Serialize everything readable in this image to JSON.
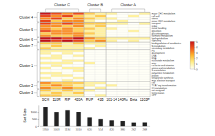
{
  "chart_data": [
    {
      "type": "heatmap",
      "column_clusters": [
        {
          "name": "Cluster C",
          "size": 4
        },
        {
          "name": "Cluster B",
          "size": 2
        },
        {
          "name": "Cluster A",
          "size": 4
        }
      ],
      "row_clusters": [
        {
          "name": "Cluster 4",
          "size": 4
        },
        {
          "name": "Cluster 5",
          "size": 6
        },
        {
          "name": "Cluster 6",
          "size": 2
        },
        {
          "name": "Cluster 7",
          "size": 3
        },
        {
          "name": "Cluster 1",
          "size": 13
        },
        {
          "name": "Cluster 2",
          "size": 3
        },
        {
          "name": "Cluster 3",
          "size": 3
        }
      ],
      "rows": [
        "major CHO metabolism",
        "cell wall",
        "stress",
        "minor CHO metabolism",
        "transport",
        "redox",
        "metal handling",
        "glycolysis",
        "gluconeogenesis",
        "hormone metabolism",
        "lipid metabolism",
        "signalling",
        "biodegradation of xenobiotics",
        "N-metabolism",
        "secondary metabolism",
        "PS",
        "development",
        "DNA",
        "RNA",
        "nucleotide metabolism",
        "misc",
        "co-factor and vitamine",
        "amino acid metabolism",
        "S-assimilation",
        "polyamine metabolism",
        "protein",
        "tetrapyrrole synthesis",
        "mito. electron transport",
        "cell",
        "TCA / org transformation",
        "C1-metabolism",
        "not assigned",
        "fermentation",
        "OPP"
      ],
      "cells": [
        [
          5,
          4,
          3,
          4,
          2,
          1,
          1,
          0,
          0,
          1
        ],
        [
          4,
          3,
          4,
          2,
          1,
          2,
          0,
          0,
          1,
          0
        ],
        [
          3,
          4,
          2,
          3,
          2,
          1,
          1,
          0,
          0,
          0
        ],
        [
          4,
          2,
          3,
          3,
          1,
          0,
          0,
          1,
          0,
          0
        ],
        [
          4,
          3,
          4,
          3,
          2,
          2,
          1,
          1,
          0,
          1
        ],
        [
          3,
          3,
          2,
          3,
          1,
          2,
          0,
          0,
          0,
          0
        ],
        [
          3,
          2,
          3,
          2,
          2,
          1,
          1,
          0,
          0,
          0
        ],
        [
          4,
          3,
          3,
          2,
          1,
          1,
          0,
          0,
          1,
          0
        ],
        [
          2,
          3,
          3,
          3,
          2,
          1,
          0,
          0,
          0,
          0
        ],
        [
          3,
          2,
          2,
          3,
          1,
          1,
          0,
          0,
          0,
          0
        ],
        [
          5,
          5,
          4,
          5,
          3,
          2,
          1,
          1,
          1,
          1
        ],
        [
          5,
          4,
          5,
          4,
          2,
          3,
          1,
          0,
          1,
          0
        ],
        [
          2,
          2,
          1,
          2,
          1,
          1,
          0,
          0,
          0,
          0
        ],
        [
          1,
          2,
          1,
          1,
          0,
          1,
          0,
          0,
          0,
          0
        ],
        [
          2,
          1,
          1,
          1,
          1,
          0,
          0,
          0,
          0,
          0
        ],
        [
          1,
          1,
          1,
          1,
          0,
          0,
          0,
          0,
          0,
          0
        ],
        [
          1,
          0,
          1,
          0,
          0,
          0,
          0,
          0,
          0,
          0
        ],
        [
          0,
          1,
          0,
          1,
          0,
          0,
          0,
          0,
          0,
          0
        ],
        [
          1,
          1,
          0,
          0,
          0,
          0,
          0,
          0,
          0,
          0
        ],
        [
          0,
          0,
          1,
          1,
          0,
          0,
          0,
          0,
          0,
          0
        ],
        [
          1,
          1,
          1,
          0,
          1,
          0,
          0,
          0,
          0,
          0
        ],
        [
          0,
          1,
          0,
          0,
          0,
          0,
          0,
          0,
          0,
          0
        ],
        [
          1,
          0,
          1,
          1,
          0,
          0,
          0,
          0,
          0,
          0
        ],
        [
          0,
          0,
          0,
          1,
          0,
          0,
          0,
          0,
          0,
          0
        ],
        [
          1,
          1,
          0,
          0,
          0,
          0,
          0,
          0,
          0,
          0
        ],
        [
          0,
          1,
          1,
          0,
          0,
          0,
          0,
          0,
          0,
          0
        ],
        [
          1,
          0,
          0,
          1,
          0,
          0,
          0,
          0,
          0,
          0
        ],
        [
          0,
          0,
          1,
          0,
          0,
          0,
          0,
          0,
          0,
          0
        ],
        [
          3,
          2,
          2,
          2,
          1,
          1,
          0,
          0,
          0,
          0
        ],
        [
          2,
          3,
          2,
          1,
          1,
          0,
          1,
          0,
          0,
          0
        ],
        [
          3,
          2,
          3,
          2,
          0,
          1,
          0,
          0,
          0,
          0
        ],
        [
          2,
          1,
          2,
          1,
          1,
          0,
          0,
          0,
          0,
          0
        ],
        [
          1,
          2,
          1,
          2,
          0,
          0,
          0,
          0,
          0,
          0
        ],
        [
          2,
          2,
          1,
          1,
          0,
          1,
          0,
          0,
          0,
          0
        ]
      ],
      "color_range": [
        0,
        5
      ],
      "color_ticks": [
        0,
        1,
        2,
        3,
        4,
        5
      ]
    },
    {
      "type": "bar",
      "categories": [
        "SCH",
        "110R",
        "RIP",
        "420A",
        "RUP",
        "41B",
        "101-14",
        "140Ru",
        "Beta",
        "1103P"
      ],
      "values": [
        1350,
        1003,
        1134,
        1010,
        620,
        514,
        420,
        380,
        262,
        268
      ],
      "ylim": [
        0,
        1500
      ],
      "yticks": [
        0,
        500,
        1000
      ],
      "y_label": "Set Size",
      "color": "#222222",
      "data_labels": true
    }
  ]
}
